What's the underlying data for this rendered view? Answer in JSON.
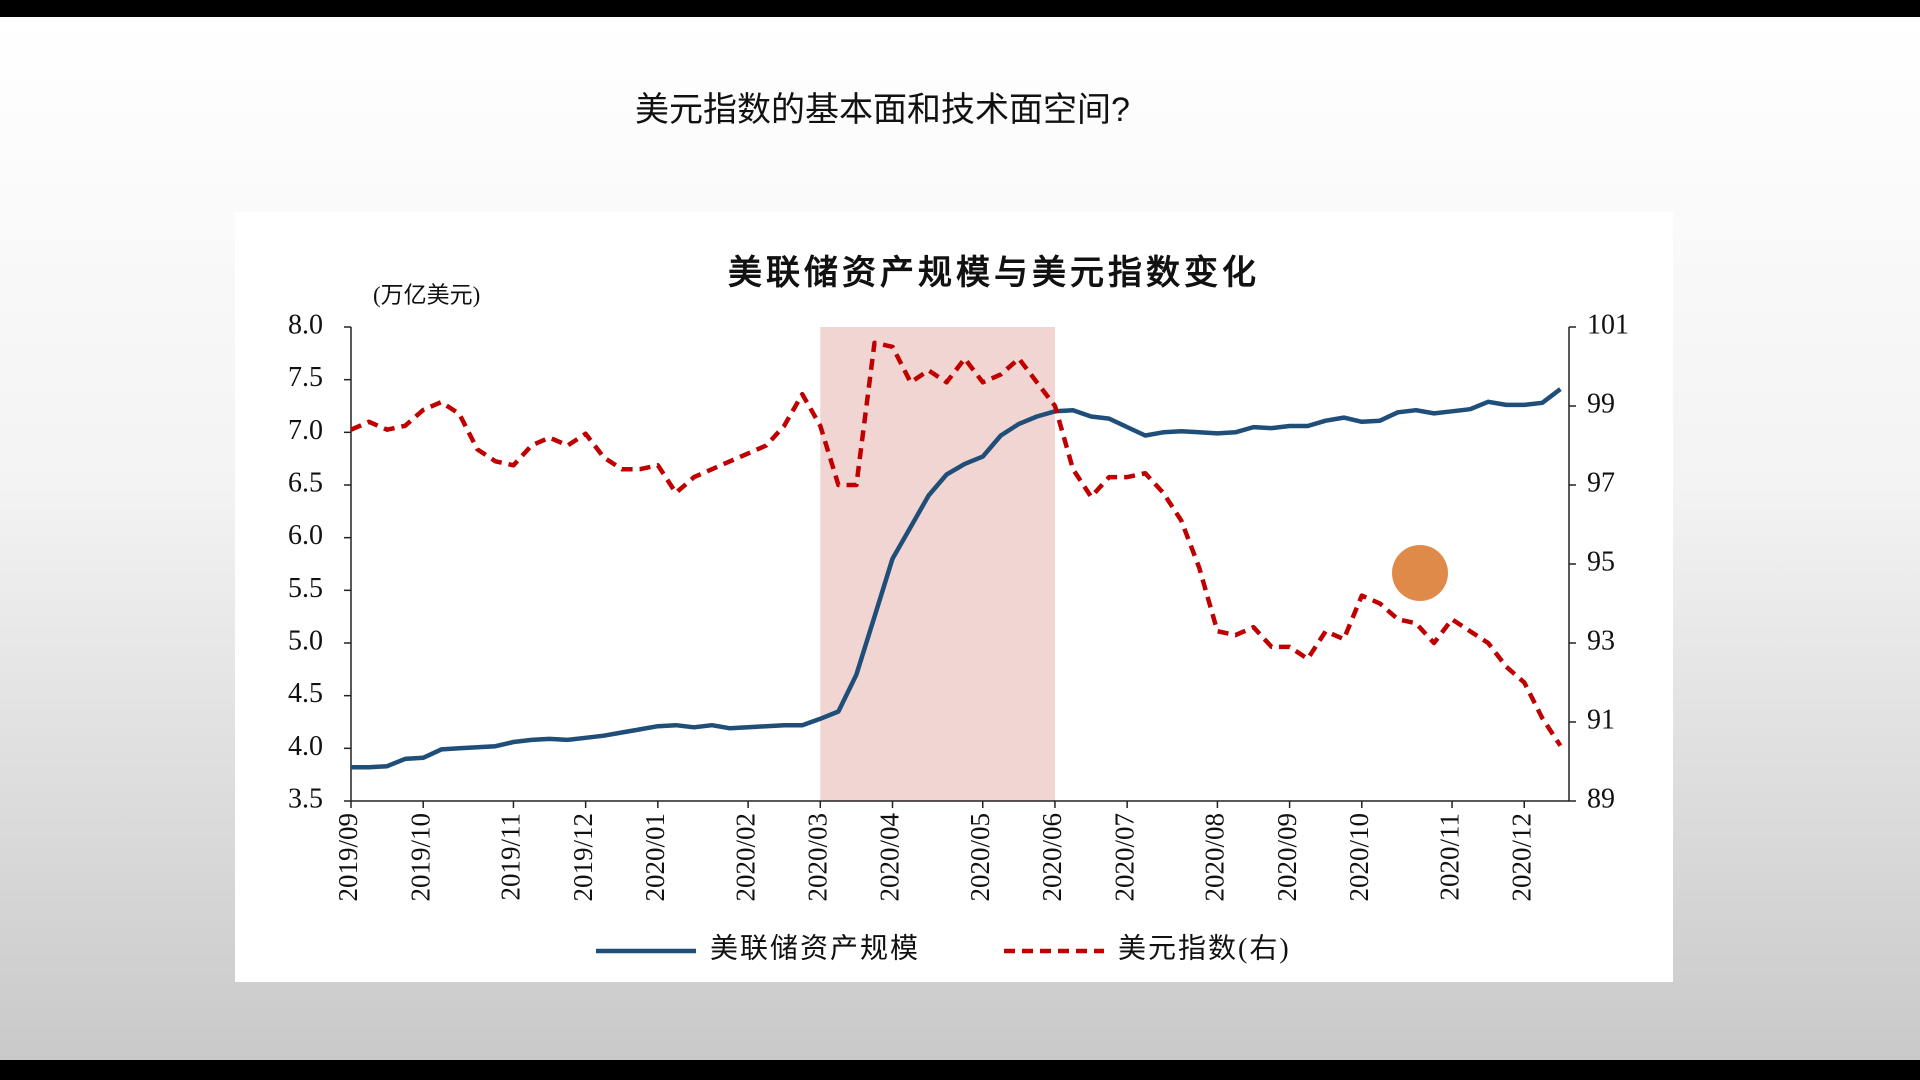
{
  "slide_title": "美元指数的基本面和技术面空间?",
  "chart_data": {
    "type": "line",
    "title": "美联储资产规模与美元指数变化",
    "y_unit": "(万亿美元)",
    "categories": [
      "2019/09",
      null,
      null,
      null,
      "2019/10",
      null,
      null,
      null,
      null,
      "2019/11",
      null,
      null,
      null,
      "2019/12",
      null,
      null,
      null,
      "2020/01",
      null,
      null,
      null,
      null,
      "2020/02",
      null,
      null,
      null,
      "2020/03",
      null,
      null,
      null,
      "2020/04",
      null,
      null,
      null,
      null,
      "2020/05",
      null,
      null,
      null,
      "2020/06",
      null,
      null,
      null,
      "2020/07",
      null,
      null,
      null,
      null,
      "2020/08",
      null,
      null,
      null,
      "2020/09",
      null,
      null,
      null,
      "2020/10",
      null,
      null,
      null,
      null,
      "2020/11",
      null,
      null,
      null,
      "2020/12",
      null,
      null
    ],
    "series": [
      {
        "name": "美联储资产规模",
        "color": "#1f4e79",
        "line_style": "solid",
        "axis": "y",
        "values": [
          3.82,
          3.82,
          3.83,
          3.9,
          3.91,
          3.99,
          4.0,
          4.01,
          4.02,
          4.06,
          4.08,
          4.09,
          4.08,
          4.1,
          4.12,
          4.15,
          4.18,
          4.21,
          4.22,
          4.2,
          4.22,
          4.19,
          4.2,
          4.21,
          4.22,
          4.22,
          4.28,
          4.35,
          4.7,
          5.25,
          5.8,
          6.1,
          6.4,
          6.6,
          6.7,
          6.77,
          6.97,
          7.08,
          7.15,
          7.2,
          7.21,
          7.15,
          7.13,
          7.05,
          6.97,
          7.0,
          7.01,
          7.0,
          6.99,
          7.0,
          7.05,
          7.04,
          7.06,
          7.06,
          7.11,
          7.14,
          7.1,
          7.11,
          7.19,
          7.21,
          7.18,
          7.2,
          7.22,
          7.29,
          7.26,
          7.26,
          7.28,
          7.41
        ]
      },
      {
        "name": "美元指数(右)",
        "color": "#c00000",
        "line_style": "dashed",
        "axis": "y2",
        "values": [
          98.4,
          98.6,
          98.4,
          98.5,
          98.9,
          99.1,
          98.8,
          97.9,
          97.6,
          97.5,
          98.0,
          98.2,
          98.0,
          98.3,
          97.7,
          97.4,
          97.4,
          97.5,
          96.8,
          97.2,
          97.4,
          97.6,
          97.8,
          98.0,
          98.5,
          99.3,
          98.5,
          97.0,
          97.0,
          100.6,
          100.5,
          99.6,
          99.9,
          99.6,
          100.2,
          99.6,
          99.8,
          100.2,
          99.6,
          99.0,
          97.4,
          96.7,
          97.2,
          97.2,
          97.3,
          96.8,
          96.1,
          94.9,
          93.3,
          93.2,
          93.4,
          92.9,
          92.9,
          92.6,
          93.3,
          93.1,
          94.2,
          94.0,
          93.6,
          93.5,
          93.0,
          93.6,
          93.3,
          93.0,
          92.4,
          92.0,
          91.1,
          90.4
        ]
      }
    ],
    "ylim": [
      3.5,
      8.0
    ],
    "yticks": [
      3.5,
      {
        "value": 4,
        "label": "4.0"
      },
      4.5,
      {
        "value": 5,
        "label": "5.0"
      },
      5.5,
      {
        "value": 6,
        "label": "6.0"
      },
      6.5,
      {
        "value": 7,
        "label": "7.0"
      },
      7.5,
      {
        "value": 8,
        "label": "8.0"
      }
    ],
    "y2lim": [
      89,
      101
    ],
    "y2ticks": [
      89,
      91,
      93,
      95,
      97,
      99,
      101
    ],
    "highlight": {
      "from": "2020/03",
      "to": "2020/06",
      "color": "#f1d5d2"
    },
    "legend": "bottom",
    "grid": false
  }
}
